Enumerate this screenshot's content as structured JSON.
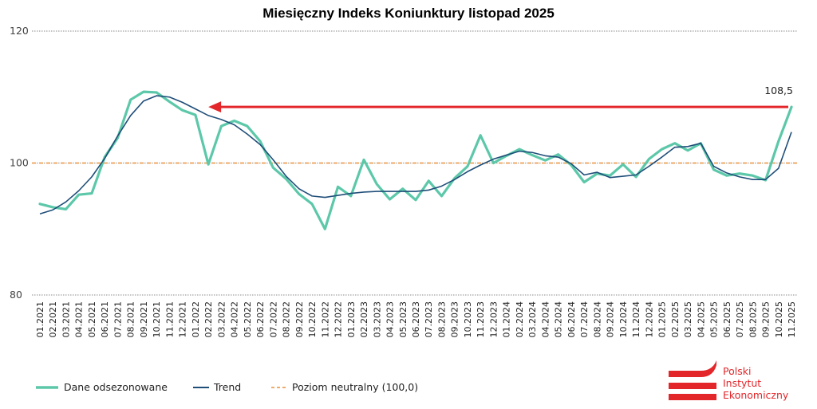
{
  "chart_data": {
    "type": "line",
    "title": "Miesięczny Indeks Koniunktury listopad 2025",
    "xlabel": "",
    "ylabel": "",
    "ylim": [
      80,
      120
    ],
    "yticks": [
      80,
      100,
      120
    ],
    "grid": "horizontal dotted",
    "legend_position": "bottom-left",
    "categories": [
      "01.2021",
      "02.2021",
      "03.2021",
      "04.2021",
      "05.2021",
      "06.2021",
      "07.2021",
      "08.2021",
      "09.2021",
      "10.2021",
      "11.2021",
      "12.2021",
      "01.2022",
      "02.2022",
      "03.2022",
      "04.2022",
      "05.2022",
      "06.2022",
      "07.2022",
      "08.2022",
      "09.2022",
      "10.2022",
      "11.2022",
      "12.2022",
      "01.2023",
      "02.2023",
      "03.2023",
      "04.2023",
      "05.2023",
      "06.2023",
      "07.2023",
      "08.2023",
      "09.2023",
      "10.2023",
      "11.2023",
      "12.2023",
      "01.2024",
      "02.2024",
      "03.2024",
      "04.2024",
      "05.2024",
      "06.2024",
      "07.2024",
      "08.2024",
      "09.2024",
      "10.2024",
      "11.2024",
      "12.2024",
      "01.2025",
      "02.2025",
      "03.2025",
      "04.2025",
      "05.2025",
      "06.2025",
      "07.2025",
      "08.2025",
      "09.2025",
      "10.2025",
      "11.2025"
    ],
    "series": [
      {
        "name": "Dane odsezonowane",
        "color": "#5cc8a9",
        "style": "solid-thick",
        "values": [
          93.8,
          93.3,
          93.0,
          95.2,
          95.4,
          100.9,
          103.8,
          109.6,
          110.8,
          110.7,
          109.3,
          108.0,
          107.3,
          99.8,
          105.6,
          106.4,
          105.6,
          103.3,
          99.3,
          97.6,
          95.3,
          93.8,
          90.0,
          96.4,
          95.0,
          100.5,
          96.8,
          94.5,
          96.1,
          94.4,
          97.3,
          95.0,
          97.7,
          99.5,
          104.2,
          100.0,
          101.1,
          102.1,
          101.2,
          100.4,
          101.3,
          99.7,
          97.1,
          98.4,
          98.1,
          99.8,
          97.9,
          100.6,
          102.1,
          103.0,
          101.9,
          103.0,
          99.0,
          98.1,
          98.4,
          98.1,
          97.4,
          103.3,
          108.5
        ]
      },
      {
        "name": "Trend",
        "color": "#1f4e79",
        "style": "solid-thin",
        "values": [
          92.3,
          92.9,
          94.1,
          95.8,
          97.9,
          100.7,
          104.1,
          107.2,
          109.4,
          110.2,
          110.0,
          109.2,
          108.2,
          107.2,
          106.6,
          105.8,
          104.4,
          102.8,
          100.5,
          98.0,
          96.1,
          95.0,
          94.8,
          95.1,
          95.4,
          95.6,
          95.7,
          95.7,
          95.7,
          95.7,
          95.9,
          96.5,
          97.5,
          98.7,
          99.7,
          100.6,
          101.2,
          101.8,
          101.6,
          101.1,
          100.9,
          99.9,
          98.2,
          98.6,
          97.8,
          98.0,
          98.2,
          99.5,
          100.9,
          102.4,
          102.5,
          103.0,
          99.5,
          98.5,
          97.9,
          97.5,
          97.5,
          99.2,
          104.7
        ]
      },
      {
        "name": "Poziom neutralny (100,0)",
        "color": "#e8913a",
        "style": "dashed",
        "constant": 100.0
      }
    ],
    "annotations": [
      {
        "text": "108,5",
        "category": "11.2025",
        "value": 108.5
      },
      {
        "type": "arrow",
        "color": "#e3262a",
        "from_category": "11.2025",
        "to_category": "02.2022",
        "value": 108.5
      }
    ],
    "legend": [
      "Dane odsezonowane",
      "Trend",
      "Poziom neutralny (100,0)"
    ]
  },
  "logo": {
    "lines": [
      "Polski",
      "Instytut",
      "Ekonomiczny"
    ],
    "color": "#e3262a"
  }
}
